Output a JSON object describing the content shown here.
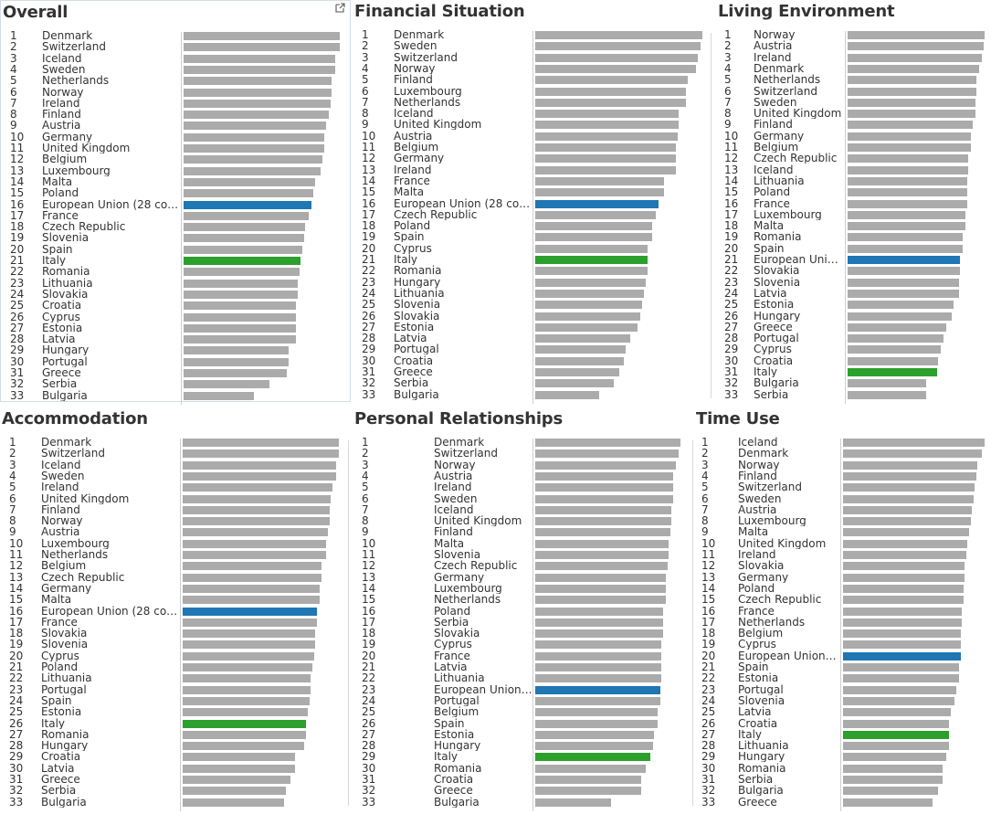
{
  "colors": {
    "bar": "#ababab",
    "eu": "#1f77b4",
    "italy": "#2ca02c"
  },
  "toolbar_icon": "external-link-icon",
  "chart_data": [
    {
      "type": "bar",
      "title": "Overall",
      "ranks": [
        1,
        2,
        3,
        4,
        5,
        6,
        7,
        8,
        9,
        10,
        11,
        12,
        13,
        14,
        15,
        16,
        17,
        18,
        19,
        20,
        21,
        22,
        23,
        24,
        25,
        26,
        27,
        28,
        29,
        30,
        31,
        32,
        33
      ],
      "categories": [
        "Denmark",
        "Switzerland",
        "Iceland",
        "Sweden",
        "Netherlands",
        "Norway",
        "Ireland",
        "Finland",
        "Austria",
        "Germany",
        "United Kingdom",
        "Belgium",
        "Luxembourg",
        "Malta",
        "Poland",
        "European Union (28 cou..",
        "France",
        "Czech Republic",
        "Slovenia",
        "Spain",
        "Italy",
        "Romania",
        "Lithuania",
        "Slovakia",
        "Croatia",
        "Cyprus",
        "Estonia",
        "Latvia",
        "Hungary",
        "Portugal",
        "Greece",
        "Serbia",
        "Bulgaria"
      ],
      "values": [
        100,
        100,
        97,
        97,
        95,
        95,
        94,
        93,
        91,
        90,
        90,
        89,
        88,
        84,
        83,
        82,
        80,
        78,
        77,
        76,
        75,
        74,
        73,
        73,
        72,
        72,
        72,
        72,
        67,
        67,
        66,
        55,
        45
      ],
      "xlim": [
        0,
        100
      ]
    },
    {
      "type": "bar",
      "title": "Financial Situation",
      "ranks": [
        1,
        2,
        3,
        4,
        5,
        6,
        7,
        8,
        9,
        10,
        11,
        12,
        13,
        14,
        15,
        16,
        17,
        18,
        19,
        20,
        21,
        22,
        23,
        24,
        25,
        26,
        27,
        28,
        29,
        30,
        31,
        32,
        33
      ],
      "categories": [
        "Denmark",
        "Sweden",
        "Switzerland",
        "Norway",
        "Finland",
        "Luxembourg",
        "Netherlands",
        "Iceland",
        "United Kingdom",
        "Austria",
        "Belgium",
        "Germany",
        "Ireland",
        "France",
        "Malta",
        "European Union (28 cou..",
        "Czech Republic",
        "Poland",
        "Spain",
        "Cyprus",
        "Italy",
        "Romania",
        "Hungary",
        "Lithuania",
        "Slovenia",
        "Slovakia",
        "Estonia",
        "Latvia",
        "Portugal",
        "Croatia",
        "Greece",
        "Serbia",
        "Bulgaria"
      ],
      "values": [
        100,
        99,
        97,
        96,
        91,
        90,
        90,
        86,
        86,
        85,
        84,
        84,
        84,
        77,
        77,
        74,
        72,
        70,
        70,
        67,
        67,
        67,
        66,
        65,
        64,
        63,
        61,
        57,
        54,
        53,
        50,
        47,
        38
      ],
      "xlim": [
        0,
        100
      ]
    },
    {
      "type": "bar",
      "title": "Living Environment",
      "ranks": [
        1,
        2,
        3,
        4,
        5,
        6,
        7,
        8,
        9,
        10,
        11,
        12,
        13,
        14,
        15,
        16,
        17,
        18,
        19,
        20,
        21,
        22,
        23,
        24,
        25,
        26,
        27,
        28,
        29,
        30,
        31,
        32,
        33
      ],
      "categories": [
        "Norway",
        "Austria",
        "Ireland",
        "Denmark",
        "Netherlands",
        "Switzerland",
        "Sweden",
        "United Kingdom",
        "Finland",
        "Germany",
        "Belgium",
        "Czech Republic",
        "Iceland",
        "Lithuania",
        "Poland",
        "France",
        "Luxembourg",
        "Malta",
        "Romania",
        "Spain",
        "European Union..",
        "Slovakia",
        "Slovenia",
        "Latvia",
        "Estonia",
        "Hungary",
        "Greece",
        "Portugal",
        "Cyprus",
        "Croatia",
        "Italy",
        "Bulgaria",
        "Serbia"
      ],
      "values": [
        100,
        99,
        98,
        96,
        94,
        94,
        93,
        93,
        91,
        90,
        90,
        88,
        88,
        87,
        87,
        87,
        86,
        86,
        84,
        84,
        82,
        82,
        81,
        81,
        77,
        76,
        72,
        70,
        68,
        66,
        65,
        57,
        57
      ],
      "xlim": [
        0,
        100
      ]
    },
    {
      "type": "bar",
      "title": "Accommodation",
      "ranks": [
        1,
        2,
        3,
        4,
        5,
        6,
        7,
        8,
        9,
        10,
        11,
        12,
        13,
        14,
        15,
        16,
        17,
        18,
        19,
        20,
        21,
        22,
        23,
        24,
        25,
        26,
        27,
        28,
        29,
        30,
        31,
        32,
        33
      ],
      "categories": [
        "Denmark",
        "Switzerland",
        "Iceland",
        "Sweden",
        "Ireland",
        "United Kingdom",
        "Finland",
        "Norway",
        "Austria",
        "Luxembourg",
        "Netherlands",
        "Belgium",
        "Czech Republic",
        "Germany",
        "Malta",
        "European Union (28 cou..",
        "France",
        "Slovakia",
        "Slovenia",
        "Cyprus",
        "Poland",
        "Lithuania",
        "Portugal",
        "Spain",
        "Estonia",
        "Italy",
        "Romania",
        "Hungary",
        "Croatia",
        "Latvia",
        "Greece",
        "Serbia",
        "Bulgaria"
      ],
      "values": [
        100,
        100,
        98,
        98,
        96,
        95,
        94,
        94,
        93,
        92,
        92,
        89,
        89,
        88,
        88,
        86,
        86,
        85,
        85,
        84,
        83,
        82,
        82,
        81,
        80,
        79,
        79,
        78,
        72,
        72,
        69,
        66,
        65
      ],
      "xlim": [
        0,
        100
      ]
    },
    {
      "type": "bar",
      "title": "Personal Relationships",
      "ranks": [
        1,
        2,
        3,
        4,
        5,
        6,
        7,
        8,
        9,
        10,
        11,
        12,
        13,
        14,
        15,
        16,
        17,
        18,
        19,
        20,
        21,
        22,
        23,
        24,
        25,
        26,
        27,
        28,
        29,
        30,
        31,
        32,
        33
      ],
      "categories": [
        "Denmark",
        "Switzerland",
        "Norway",
        "Austria",
        "Ireland",
        "Sweden",
        "Iceland",
        "United Kingdom",
        "Finland",
        "Malta",
        "Slovenia",
        "Czech Republic",
        "Germany",
        "Luxembourg",
        "Netherlands",
        "Poland",
        "Serbia",
        "Slovakia",
        "Cyprus",
        "France",
        "Latvia",
        "Lithuania",
        "European Union (..",
        "Portugal",
        "Belgium",
        "Spain",
        "Estonia",
        "Hungary",
        "Italy",
        "Romania",
        "Croatia",
        "Greece",
        "Bulgaria"
      ],
      "values": [
        100,
        99,
        97,
        95,
        95,
        95,
        94,
        94,
        93,
        92,
        92,
        91,
        90,
        90,
        90,
        88,
        88,
        88,
        87,
        87,
        87,
        87,
        86,
        86,
        84,
        84,
        82,
        81,
        79,
        76,
        73,
        73,
        52
      ],
      "xlim": [
        0,
        100
      ]
    },
    {
      "type": "bar",
      "title": "Time Use",
      "ranks": [
        1,
        2,
        3,
        4,
        5,
        6,
        7,
        8,
        9,
        10,
        11,
        12,
        13,
        14,
        15,
        16,
        17,
        18,
        19,
        20,
        21,
        22,
        23,
        24,
        25,
        26,
        27,
        28,
        29,
        30,
        31,
        32,
        33
      ],
      "categories": [
        "Iceland",
        "Denmark",
        "Norway",
        "Finland",
        "Switzerland",
        "Sweden",
        "Austria",
        "Luxembourg",
        "Malta",
        "United Kingdom",
        "Ireland",
        "Slovakia",
        "Germany",
        "Poland",
        "Czech Republic",
        "France",
        "Netherlands",
        "Belgium",
        "Cyprus",
        "European Union (..",
        "Spain",
        "Estonia",
        "Portugal",
        "Slovenia",
        "Latvia",
        "Croatia",
        "Italy",
        "Lithuania",
        "Hungary",
        "Romania",
        "Serbia",
        "Bulgaria",
        "Greece"
      ],
      "values": [
        100,
        98,
        95,
        94,
        93,
        92,
        91,
        90,
        89,
        88,
        87,
        86,
        86,
        85,
        85,
        84,
        84,
        83,
        83,
        83,
        82,
        82,
        80,
        79,
        76,
        75,
        75,
        75,
        73,
        70,
        70,
        67,
        63
      ],
      "xlim": [
        0,
        100
      ]
    }
  ]
}
